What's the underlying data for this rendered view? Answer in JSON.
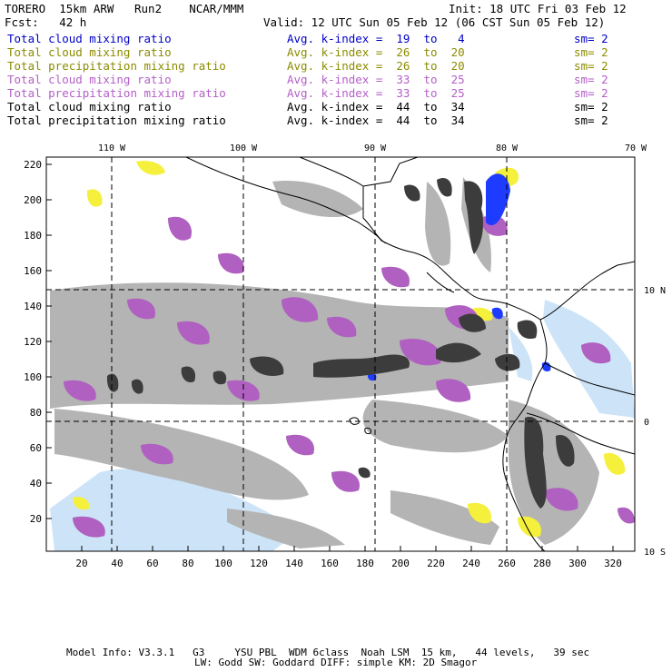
{
  "header": {
    "model": "TORERO  15km ARW   Run2    NCAR/MMM",
    "init": "Init: 18 UTC Fri 03 Feb 12",
    "fcst": "Fcst:   42 h",
    "valid": "Valid: 12 UTC Sun 05 Feb 12 (06 CST Sun 05 Feb 12)"
  },
  "legend": [
    {
      "field": "Total cloud mixing ratio",
      "avg": "Avg. k-index =  19  to   4",
      "sm": "sm= 2",
      "color": "#0000c8"
    },
    {
      "field": "Total cloud mixing ratio",
      "avg": "Avg. k-index =  26  to  20",
      "sm": "sm= 2",
      "color": "#8c8c00"
    },
    {
      "field": "Total precipitation mixing ratio",
      "avg": "Avg. k-index =  26  to  20",
      "sm": "sm= 2",
      "color": "#8c8c00"
    },
    {
      "field": "Total cloud mixing ratio",
      "avg": "Avg. k-index =  33  to  25",
      "sm": "sm= 2",
      "color": "#b45fc8"
    },
    {
      "field": "Total precipitation mixing ratio",
      "avg": "Avg. k-index =  33  to  25",
      "sm": "sm= 2",
      "color": "#b45fc8"
    },
    {
      "field": "Total cloud mixing ratio",
      "avg": "Avg. k-index =  44  to  34",
      "sm": "sm= 2",
      "color": "#000000"
    },
    {
      "field": "Total precipitation mixing ratio",
      "avg": "Avg. k-index =  44  to  34",
      "sm": "sm= 2",
      "color": "#000000"
    }
  ],
  "map": {
    "lon_labels": [
      "110 W",
      "100 W",
      "90 W",
      "80 W",
      "70 W"
    ],
    "lat_labels": [
      "10 N",
      "0",
      "10 S"
    ],
    "grid_x_ticks": [
      "20",
      "40",
      "60",
      "80",
      "100",
      "120",
      "140",
      "160",
      "180",
      "200",
      "220",
      "240",
      "260",
      "280",
      "300",
      "320"
    ],
    "grid_y_ticks": [
      "220",
      "200",
      "180",
      "160",
      "140",
      "120",
      "100",
      "80",
      "60",
      "40",
      "20"
    ],
    "grid_x_max": 332,
    "grid_y_max": 225
  },
  "footer": {
    "line1": "Model Info: V3.3.1   G3     YSU PBL  WDM 6class  Noah LSM  15 km,   44 levels,   39 sec",
    "line2": "LW: Godd SW: Goddard DIFF: simple KM: 2D Smagor"
  }
}
